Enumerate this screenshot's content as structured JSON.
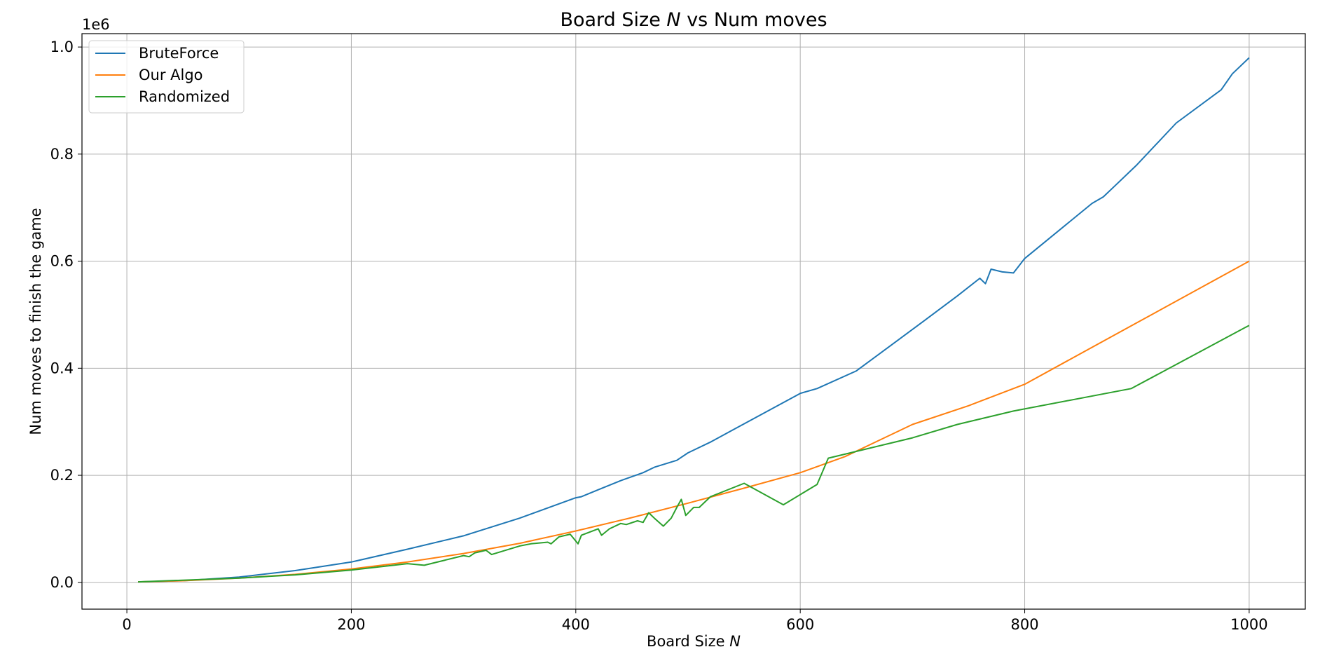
{
  "chart_data": {
    "type": "line",
    "title": "Board Size N vs Num moves",
    "title_parts": {
      "prefix": "Board Size ",
      "var": "N",
      "suffix": " vs Num moves"
    },
    "xlabel": "Board Size N",
    "xlabel_parts": {
      "prefix": "Board Size ",
      "var": "N"
    },
    "ylabel": "Num moves to finish the game",
    "y_offset_label": "1e6",
    "xlim": [
      -40,
      1050
    ],
    "ylim": [
      -0.05,
      1.025
    ],
    "x_ticks": [
      0,
      200,
      400,
      600,
      800,
      1000
    ],
    "x_tick_labels": [
      "0",
      "200",
      "400",
      "600",
      "800",
      "1000"
    ],
    "y_ticks": [
      0.0,
      0.2,
      0.4,
      0.6,
      0.8,
      1.0
    ],
    "y_tick_labels": [
      "0.0",
      "0.2",
      "0.4",
      "0.6",
      "0.8",
      "1.0"
    ],
    "grid": true,
    "legend_position": "top-left",
    "series": [
      {
        "name": "BruteForce",
        "color": "#1f77b4",
        "x": [
          10,
          50,
          100,
          150,
          200,
          250,
          300,
          350,
          400,
          405,
          420,
          440,
          460,
          470,
          490,
          500,
          520,
          540,
          600,
          615,
          650,
          710,
          740,
          760,
          765,
          770,
          780,
          790,
          800,
          860,
          870,
          880,
          900,
          935,
          975,
          985,
          1000
        ],
        "y": [
          0.001,
          0.003,
          0.01,
          0.022,
          0.038,
          0.062,
          0.087,
          0.12,
          0.158,
          0.16,
          0.173,
          0.19,
          0.205,
          0.215,
          0.228,
          0.242,
          0.262,
          0.285,
          0.353,
          0.362,
          0.395,
          0.488,
          0.535,
          0.568,
          0.558,
          0.585,
          0.58,
          0.578,
          0.605,
          0.708,
          0.72,
          0.74,
          0.78,
          0.858,
          0.92,
          0.95,
          0.98
        ]
      },
      {
        "name": "Our Algo",
        "color": "#ff7f0e",
        "x": [
          10,
          50,
          100,
          150,
          200,
          250,
          300,
          350,
          400,
          450,
          500,
          550,
          600,
          640,
          700,
          750,
          800,
          900,
          1000
        ],
        "y": [
          0.001,
          0.003,
          0.008,
          0.015,
          0.025,
          0.038,
          0.054,
          0.073,
          0.096,
          0.121,
          0.148,
          0.176,
          0.205,
          0.235,
          0.295,
          0.33,
          0.37,
          0.485,
          0.6
        ]
      },
      {
        "name": "Randomized",
        "color": "#2ca02c",
        "x": [
          10,
          100,
          150,
          200,
          250,
          265,
          300,
          305,
          310,
          320,
          325,
          350,
          360,
          375,
          378,
          385,
          395,
          402,
          405,
          420,
          423,
          430,
          440,
          445,
          455,
          460,
          465,
          470,
          478,
          485,
          490,
          494,
          498,
          505,
          510,
          520,
          550,
          585,
          615,
          625,
          700,
          740,
          790,
          895,
          1000
        ],
        "y": [
          0.001,
          0.008,
          0.014,
          0.023,
          0.035,
          0.032,
          0.05,
          0.048,
          0.055,
          0.06,
          0.052,
          0.068,
          0.072,
          0.075,
          0.072,
          0.085,
          0.09,
          0.072,
          0.088,
          0.1,
          0.088,
          0.1,
          0.11,
          0.108,
          0.115,
          0.112,
          0.13,
          0.12,
          0.105,
          0.12,
          0.14,
          0.155,
          0.125,
          0.14,
          0.14,
          0.16,
          0.185,
          0.145,
          0.183,
          0.232,
          0.27,
          0.295,
          0.32,
          0.362,
          0.48
        ]
      }
    ]
  }
}
